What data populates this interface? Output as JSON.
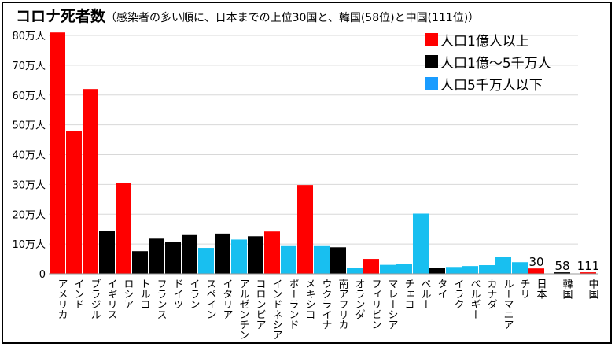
{
  "chart_data": {
    "type": "bar",
    "title": "コロナ死者数",
    "subtitle": "（感染者の多い順に、日本までの上位30国と、韓国(58位)と中国(111位)）",
    "ylim": [
      0,
      80
    ],
    "yticks": [
      "0",
      "10万人",
      "20万人",
      "30万人",
      "40万人",
      "50万人",
      "60万人",
      "70万人",
      "80万人"
    ],
    "ytick_values": [
      0,
      10,
      20,
      30,
      40,
      50,
      60,
      70,
      80
    ],
    "grid": true,
    "legend_placement": "top-right",
    "legend": [
      {
        "label": "人口1億人以上",
        "group": "large",
        "color": "#ff0000"
      },
      {
        "label": "人口1億～5千万人",
        "group": "mid",
        "color": "#000000"
      },
      {
        "label": "人口5千万人以下",
        "group": "small",
        "color": "#1a9cff"
      }
    ],
    "group_colors": {
      "large": "#ff0000",
      "mid": "#000000",
      "small": "#18bff0"
    },
    "unit": "万人",
    "bars": [
      {
        "label": "アメリカ",
        "value": 81,
        "group": "large"
      },
      {
        "label": "インド",
        "value": 48,
        "group": "large"
      },
      {
        "label": "ブラジル",
        "value": 62,
        "group": "large"
      },
      {
        "label": "イギリス",
        "value": 14.5,
        "group": "mid"
      },
      {
        "label": "ロシア",
        "value": 30.5,
        "group": "large"
      },
      {
        "label": "トルコ",
        "value": 7.6,
        "group": "mid"
      },
      {
        "label": "フランス",
        "value": 11.8,
        "group": "mid"
      },
      {
        "label": "ドイツ",
        "value": 10.8,
        "group": "mid"
      },
      {
        "label": "イラン",
        "value": 13,
        "group": "mid"
      },
      {
        "label": "スペイン",
        "value": 8.7,
        "group": "small"
      },
      {
        "label": "イタリア",
        "value": 13.5,
        "group": "mid"
      },
      {
        "label": "アルゼンチン",
        "value": 11.5,
        "group": "small"
      },
      {
        "label": "コロンビア",
        "value": 12.6,
        "group": "mid"
      },
      {
        "label": "インドネシア",
        "value": 14.2,
        "group": "large"
      },
      {
        "label": "ポーランド",
        "value": 9.3,
        "group": "small"
      },
      {
        "label": "メキシコ",
        "value": 29.8,
        "group": "large"
      },
      {
        "label": "ウクライナ",
        "value": 9.3,
        "group": "small"
      },
      {
        "label": "南アフリカ",
        "value": 8.9,
        "group": "mid"
      },
      {
        "label": "オランダ",
        "value": 2,
        "group": "small"
      },
      {
        "label": "フィリピン",
        "value": 5,
        "group": "large"
      },
      {
        "label": "マレーシア",
        "value": 3,
        "group": "small"
      },
      {
        "label": "チェコ",
        "value": 3.4,
        "group": "small"
      },
      {
        "label": "ペルー",
        "value": 20.2,
        "group": "small"
      },
      {
        "label": "タイ",
        "value": 2,
        "group": "mid"
      },
      {
        "label": "イラク",
        "value": 2.3,
        "group": "small"
      },
      {
        "label": "ベルギー",
        "value": 2.6,
        "group": "small"
      },
      {
        "label": "カナダ",
        "value": 2.9,
        "group": "small"
      },
      {
        "label": "ルーマニア",
        "value": 5.8,
        "group": "small"
      },
      {
        "label": "チリ",
        "value": 3.9,
        "group": "small"
      },
      {
        "label": "日本",
        "value": 1.8,
        "group": "large",
        "rank": "30"
      },
      {
        "label": "韓国",
        "value": 0.5,
        "group": "mid",
        "rank": "58"
      },
      {
        "label": "中国",
        "value": 0.5,
        "group": "large",
        "rank": "111"
      }
    ]
  }
}
